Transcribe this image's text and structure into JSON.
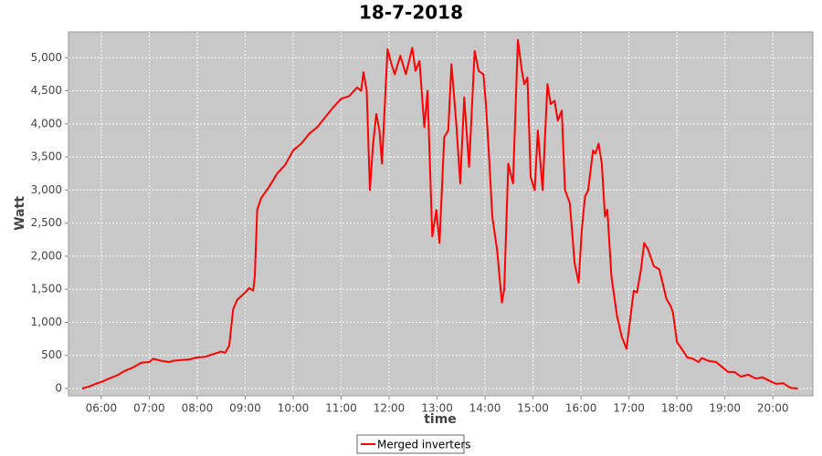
{
  "chart_data": {
    "type": "line",
    "title": "18-7-2018",
    "x_label": "time",
    "y_label": "Watt",
    "x": [
      "05:36",
      "05:45",
      "05:55",
      "06:00",
      "06:10",
      "06:20",
      "06:30",
      "06:40",
      "06:50",
      "07:00",
      "07:05",
      "07:15",
      "07:25",
      "07:30",
      "07:40",
      "07:50",
      "08:00",
      "08:10",
      "08:20",
      "08:30",
      "08:35",
      "08:40",
      "08:45",
      "08:50",
      "09:00",
      "09:05",
      "09:10",
      "09:12",
      "09:15",
      "09:20",
      "09:30",
      "09:40",
      "09:50",
      "10:00",
      "10:10",
      "10:20",
      "10:30",
      "10:40",
      "10:50",
      "11:00",
      "11:10",
      "11:20",
      "11:25",
      "11:28",
      "11:32",
      "11:36",
      "11:40",
      "11:44",
      "11:48",
      "11:51",
      "11:58",
      "12:03",
      "12:07",
      "12:14",
      "12:21",
      "12:29",
      "12:33",
      "12:38",
      "12:44",
      "12:48",
      "12:54",
      "12:59",
      "13:03",
      "13:09",
      "13:14",
      "13:18",
      "13:24",
      "13:29",
      "13:34",
      "13:40",
      "13:47",
      "13:52",
      "13:58",
      "14:01",
      "14:05",
      "14:09",
      "14:15",
      "14:21",
      "14:24",
      "14:29",
      "14:35",
      "14:41",
      "14:46",
      "14:49",
      "14:53",
      "14:57",
      "15:02",
      "15:06",
      "15:12",
      "15:18",
      "15:22",
      "15:27",
      "15:31",
      "15:36",
      "15:40",
      "15:46",
      "15:52",
      "15:57",
      "16:01",
      "16:05",
      "16:09",
      "16:15",
      "16:18",
      "16:22",
      "16:26",
      "16:30",
      "16:33",
      "16:38",
      "16:45",
      "16:51",
      "16:57",
      "17:01",
      "17:06",
      "17:10",
      "17:15",
      "17:19",
      "17:24",
      "17:31",
      "17:38",
      "17:42",
      "17:47",
      "17:52",
      "17:55",
      "18:00",
      "18:06",
      "18:13",
      "18:20",
      "18:27",
      "18:31",
      "18:39",
      "18:49",
      "18:57",
      "19:04",
      "19:12",
      "19:20",
      "19:29",
      "19:39",
      "19:47",
      "19:55",
      "20:04",
      "20:13",
      "20:22",
      "20:31"
    ],
    "series": [
      {
        "name": "Merged inverters",
        "color": "#ff0000",
        "values": [
          0,
          30,
          80,
          100,
          150,
          200,
          270,
          320,
          390,
          400,
          450,
          420,
          400,
          420,
          430,
          440,
          470,
          480,
          520,
          560,
          540,
          650,
          1200,
          1340,
          1450,
          1520,
          1480,
          1700,
          2700,
          2880,
          3050,
          3250,
          3380,
          3600,
          3700,
          3850,
          3950,
          4100,
          4250,
          4380,
          4420,
          4550,
          4500,
          4780,
          4500,
          3000,
          3700,
          4150,
          3900,
          3400,
          5130,
          4900,
          4750,
          5030,
          4750,
          5150,
          4800,
          4950,
          3950,
          4500,
          2300,
          2700,
          2200,
          3800,
          3900,
          4900,
          4000,
          3100,
          4400,
          3350,
          5100,
          4800,
          4750,
          4300,
          3500,
          2600,
          2100,
          1300,
          1500,
          3400,
          3100,
          5270,
          4800,
          4600,
          4700,
          3200,
          3000,
          3900,
          3000,
          4600,
          4300,
          4350,
          4050,
          4200,
          3000,
          2800,
          1900,
          1600,
          2400,
          2900,
          3000,
          3600,
          3550,
          3700,
          3400,
          2600,
          2700,
          1700,
          1100,
          780,
          600,
          1000,
          1480,
          1450,
          1800,
          2200,
          2100,
          1850,
          1800,
          1600,
          1350,
          1250,
          1150,
          700,
          600,
          470,
          450,
          400,
          460,
          420,
          400,
          320,
          250,
          250,
          180,
          210,
          150,
          170,
          120,
          70,
          80,
          10,
          0
        ]
      }
    ],
    "xlim": [
      "05:19",
      "20:50"
    ],
    "xticks": [
      "06:00",
      "07:00",
      "08:00",
      "09:00",
      "10:00",
      "11:00",
      "12:00",
      "13:00",
      "14:00",
      "15:00",
      "16:00",
      "17:00",
      "18:00",
      "19:00",
      "20:00"
    ],
    "ylim": [
      -110,
      5390
    ],
    "yticks": [
      0,
      500,
      {
        "value": 1000,
        "label": "1,000"
      },
      {
        "value": 1500,
        "label": "1,500"
      },
      {
        "value": 2000,
        "label": "2,000"
      },
      {
        "value": 2500,
        "label": "2,500"
      },
      {
        "value": 3000,
        "label": "3,000"
      },
      {
        "value": 3500,
        "label": "3,500"
      },
      {
        "value": 4000,
        "label": "4,000"
      },
      {
        "value": 4500,
        "label": "4,500"
      },
      {
        "value": 5000,
        "label": "5,000"
      }
    ],
    "grid": true
  }
}
